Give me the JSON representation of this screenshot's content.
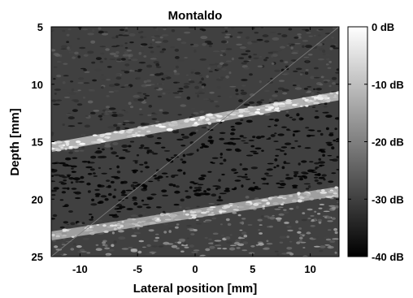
{
  "chart_data": {
    "type": "heatmap",
    "title": "Montaldo",
    "xlabel": "Lateral position [mm]",
    "ylabel": "Depth [mm]",
    "xlim": [
      -12.5,
      12.5
    ],
    "ylim": [
      25,
      5
    ],
    "x_ticks": [
      -10,
      -5,
      0,
      5,
      10
    ],
    "y_ticks": [
      5,
      10,
      15,
      20,
      25
    ],
    "colormap": "gray",
    "colorbar": {
      "range_db": [
        -40,
        0
      ],
      "ticks": [
        0,
        -10,
        -20,
        -30,
        -40
      ],
      "tick_labels": [
        "0 dB",
        "-10 dB",
        "-20 dB",
        "-30 dB",
        "-40 dB"
      ]
    },
    "structures": [
      {
        "name": "upper bright vessel wall",
        "x_mm": [
          -12.5,
          12.5
        ],
        "depth_mm": [
          15.5,
          11.0
        ],
        "intensity_db": -6
      },
      {
        "name": "lower bright vessel wall",
        "x_mm": [
          -12.5,
          12.5
        ],
        "depth_mm": [
          23.2,
          19.3
        ],
        "intensity_db": -10
      },
      {
        "name": "diagonal line artifact",
        "x_mm": [
          -12.5,
          12.5
        ],
        "depth_mm": [
          25.0,
          5.0
        ],
        "intensity_db": -20
      }
    ],
    "background_db": -30,
    "lumen_db": -40
  }
}
